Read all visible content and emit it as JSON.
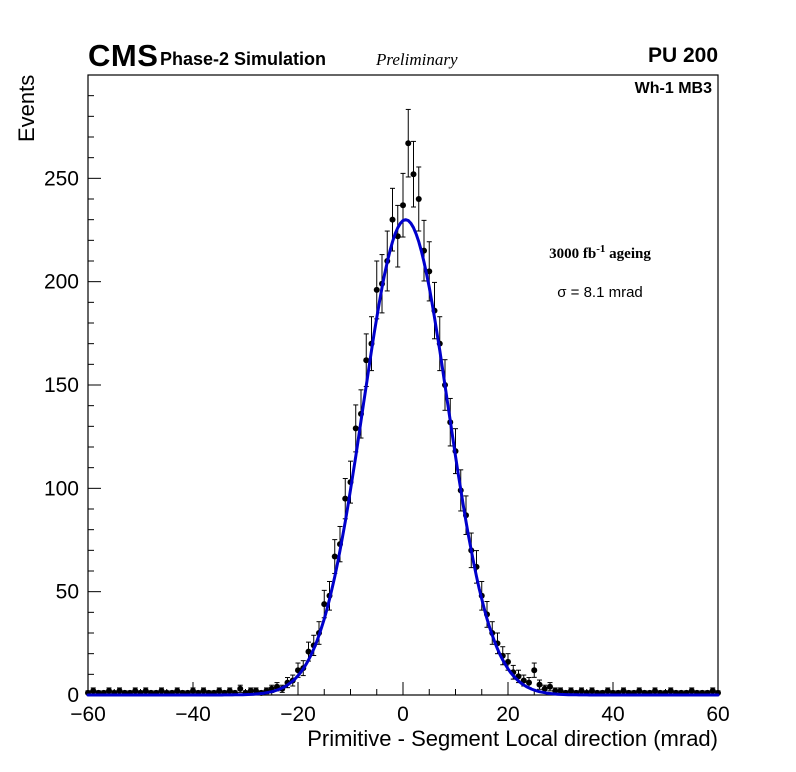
{
  "header": {
    "experiment": "CMS",
    "subtitle": "Phase-2 Simulation",
    "preliminary": "Preliminary",
    "pileup": "PU 200"
  },
  "plot": {
    "chamber_label": "Wh-1 MB3",
    "lumi_pre": "3000 fb",
    "lumi_sup": "-1",
    "lumi_post": " ageing",
    "sigma_text": "σ = 8.1 mrad"
  },
  "chart_data": {
    "type": "scatter",
    "title": "",
    "xlabel": "Primitive - Segment Local direction (mrad)",
    "ylabel": "Events",
    "xlim": [
      -60,
      60
    ],
    "ylim": [
      0,
      300
    ],
    "xticks": [
      -60,
      -40,
      -20,
      0,
      20,
      40,
      60
    ],
    "yticks": [
      0,
      50,
      100,
      150,
      200,
      250
    ],
    "x_minor_step": 5,
    "x_major_step": 20,
    "y_minor_step": 10,
    "y_major_step": 50,
    "grid": false,
    "marker_color": "#000000",
    "fit": {
      "type": "gaussian",
      "amplitude": 230,
      "mean": 0.5,
      "sigma": 8.1,
      "color": "#0000cc"
    },
    "x": [
      -60,
      -59,
      -58,
      -57,
      -56,
      -55,
      -54,
      -53,
      -52,
      -51,
      -50,
      -49,
      -48,
      -47,
      -46,
      -45,
      -44,
      -43,
      -42,
      -41,
      -40,
      -39,
      -38,
      -37,
      -36,
      -35,
      -34,
      -33,
      -32,
      -31,
      -30,
      -29,
      -28,
      -27,
      -26,
      -25,
      -24,
      -23,
      -22,
      -21,
      -20,
      -19,
      -18,
      -17,
      -16,
      -15,
      -14,
      -13,
      -12,
      -11,
      -10,
      -9,
      -8,
      -7,
      -6,
      -5,
      -4,
      -3,
      -2,
      -1,
      0,
      1,
      2,
      3,
      4,
      5,
      6,
      7,
      8,
      9,
      10,
      11,
      12,
      13,
      14,
      15,
      16,
      17,
      18,
      19,
      20,
      21,
      22,
      23,
      24,
      25,
      26,
      27,
      28,
      29,
      30,
      31,
      32,
      33,
      34,
      35,
      36,
      37,
      38,
      39,
      40,
      41,
      42,
      43,
      44,
      45,
      46,
      47,
      48,
      49,
      50,
      51,
      52,
      53,
      54,
      55,
      56,
      57,
      58,
      59,
      60
    ],
    "y": [
      1,
      2,
      1,
      1,
      2,
      1,
      2,
      1,
      1,
      2,
      1,
      2,
      1,
      1,
      2,
      1,
      1,
      2,
      1,
      1,
      2,
      1,
      2,
      1,
      1,
      2,
      1,
      2,
      1,
      3,
      1,
      2,
      2,
      1,
      2,
      3,
      4,
      3,
      6,
      7,
      12,
      13,
      21,
      24,
      30,
      44,
      48,
      67,
      73,
      95,
      103,
      129,
      136,
      162,
      170,
      196,
      199,
      210,
      230,
      222,
      237,
      267,
      252,
      240,
      215,
      205,
      186,
      170,
      150,
      132,
      118,
      99,
      87,
      70,
      62,
      48,
      39,
      30,
      25,
      19,
      16,
      11,
      9,
      7,
      6,
      12,
      5,
      3,
      4,
      2,
      2,
      1,
      2,
      1,
      2,
      1,
      2,
      1,
      1,
      2,
      1,
      1,
      2,
      1,
      1,
      2,
      1,
      1,
      2,
      1,
      1,
      2,
      1,
      1,
      1,
      2,
      1,
      1,
      1,
      2,
      1
    ]
  }
}
